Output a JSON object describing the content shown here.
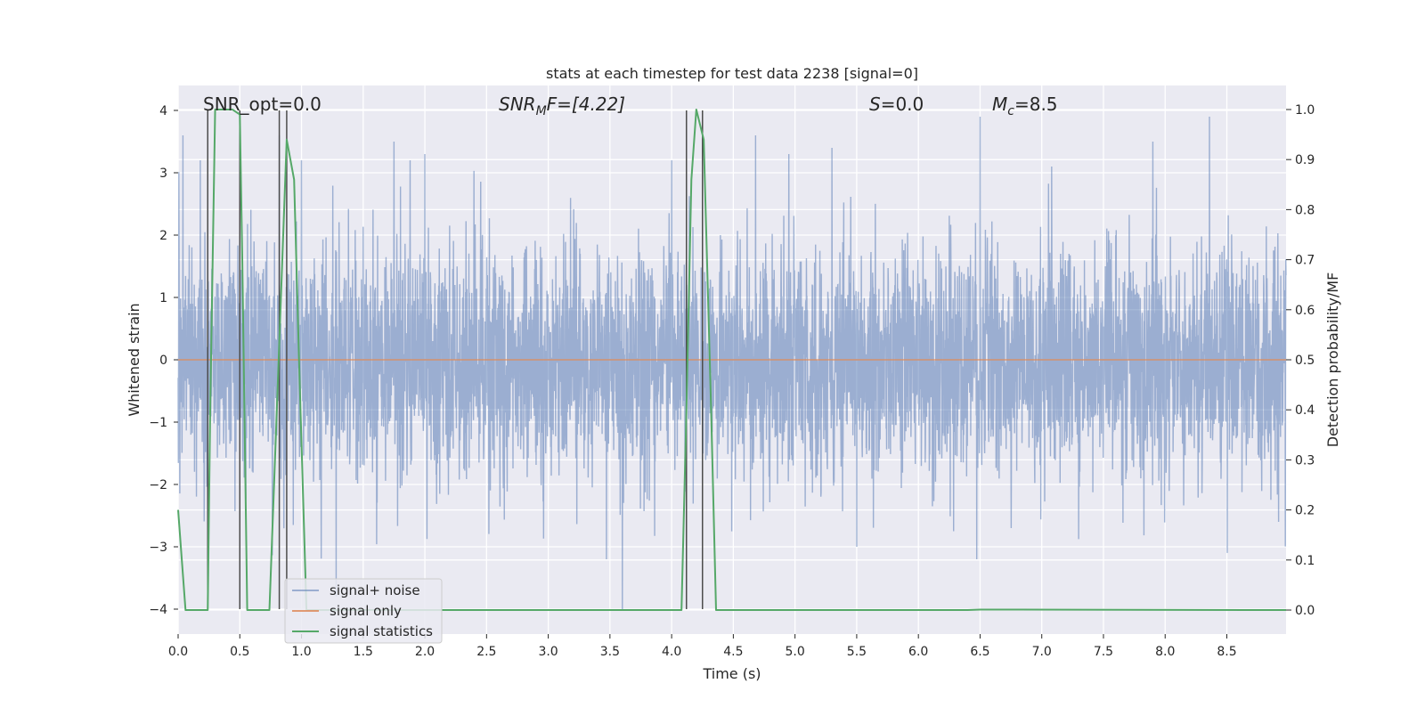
{
  "chart_data": {
    "type": "line",
    "title": "stats at each timestep for test data 2238 [signal=0]",
    "xlabel": "Time (s)",
    "ylabel": "Whitened strain",
    "ylabel_right": "Detection probability/MF",
    "xlim": [
      0,
      8.98
    ],
    "ylim": [
      -4.4,
      4.4
    ],
    "ylim_right": [
      -0.048,
      1.048
    ],
    "x_ticks": [
      "0.0",
      "0.5",
      "1.0",
      "1.5",
      "2.0",
      "2.5",
      "3.0",
      "3.5",
      "4.0",
      "4.5",
      "5.0",
      "5.5",
      "6.0",
      "6.5",
      "7.0",
      "7.5",
      "8.0",
      "8.5"
    ],
    "y_ticks": [
      "4",
      "3",
      "2",
      "1",
      "0",
      "−1",
      "−2",
      "−3",
      "−4"
    ],
    "y_right_ticks": [
      "1.0",
      "0.9",
      "0.8",
      "0.7",
      "0.6",
      "0.5",
      "0.4",
      "0.3",
      "0.2",
      "0.1",
      "0.0"
    ],
    "grid": true,
    "annotations": {
      "snr_opt": "SNR_opt=0.0",
      "snr_mf_main": "SNR",
      "snr_mf_sub": "M",
      "snr_mf_rest": "F=[4.22]",
      "s_main": "S",
      "s_rest": "=0.0",
      "mc_main": "M",
      "mc_sub": "c",
      "mc_rest": "=8.5"
    },
    "legend": {
      "placement": "lower-left",
      "entries": [
        "signal+ noise",
        "signal only",
        "signal statistics"
      ]
    },
    "series": [
      {
        "name": "signal+ noise",
        "color": "#4c72b0",
        "description": "whitened strain noise band, approx amplitude range -3.8 to 3.9",
        "noise_std": 1.0,
        "peak_times": [
          0.04,
          0.18,
          0.82,
          1.0,
          1.28,
          1.75,
          1.88,
          2.0,
          3.6,
          4.0,
          4.68,
          4.95,
          5.3,
          5.5,
          6.5,
          7.08,
          7.9,
          8.36,
          8.92
        ],
        "peak_values": [
          3.6,
          3.2,
          3.6,
          3.2,
          -3.8,
          3.5,
          3.2,
          3.3,
          -4.0,
          3.2,
          3.6,
          3.3,
          3.4,
          -3.0,
          3.9,
          3.1,
          3.5,
          3.9,
          -2.6
        ]
      },
      {
        "name": "signal only",
        "color": "#dd8452",
        "x": [
          0,
          8.98
        ],
        "values": [
          0,
          0
        ]
      },
      {
        "name": "signal statistics",
        "color": "#55a868",
        "axis": "right",
        "x": [
          0,
          0.06,
          0.24,
          0.26,
          0.3,
          0.44,
          0.5,
          0.52,
          0.56,
          0.74,
          0.8,
          0.88,
          0.94,
          0.98,
          1.04,
          4.08,
          4.12,
          4.16,
          4.2,
          4.26,
          4.32,
          4.36,
          6.4,
          6.5,
          8.98
        ],
        "values": [
          0.2,
          0.0,
          0.0,
          0.4,
          1.0,
          1.0,
          0.99,
          0.7,
          0.0,
          0.0,
          0.4,
          0.94,
          0.86,
          0.5,
          0.0,
          0.0,
          0.4,
          0.86,
          1.0,
          0.94,
          0.4,
          0.0,
          0.0,
          0.001,
          0.0
        ]
      }
    ],
    "vertical_markers": {
      "color": "#4d4d4d",
      "x": [
        0.24,
        0.5,
        0.82,
        0.88,
        4.12,
        4.25
      ],
      "y_range": [
        -4,
        4
      ]
    }
  }
}
